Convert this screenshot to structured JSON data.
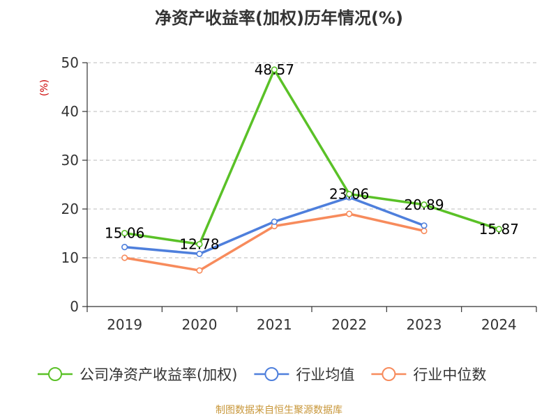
{
  "title": "净资产收益率(加权)历年情况(%)",
  "ylabel": "(%)",
  "footer": "制图数据来自恒生聚源数据库",
  "chart_data": {
    "type": "line",
    "title": "净资产收益率(加权)历年情况(%)",
    "ylabel": "(%)",
    "categories": [
      "2019",
      "2020",
      "2021",
      "2022",
      "2023",
      "2024"
    ],
    "ylim": [
      0,
      50
    ],
    "yticks": [
      0,
      10,
      20,
      30,
      40,
      50
    ],
    "grid": true,
    "legend_position": "bottom",
    "series": [
      {
        "name": "公司净资产收益率(加权)",
        "color": "#5ac127",
        "values": [
          15.06,
          12.78,
          48.57,
          23.06,
          20.89,
          15.87
        ],
        "labels": [
          "15.06",
          "12.78",
          "48.57",
          "23.06",
          "20.89",
          "15.87"
        ]
      },
      {
        "name": "行业均值",
        "color": "#4e7fdc",
        "values": [
          12.2,
          10.8,
          17.4,
          22.4,
          16.6,
          null
        ]
      },
      {
        "name": "行业中位数",
        "color": "#f78b5c",
        "values": [
          10.0,
          7.4,
          16.5,
          19.0,
          15.5,
          null
        ]
      }
    ]
  }
}
